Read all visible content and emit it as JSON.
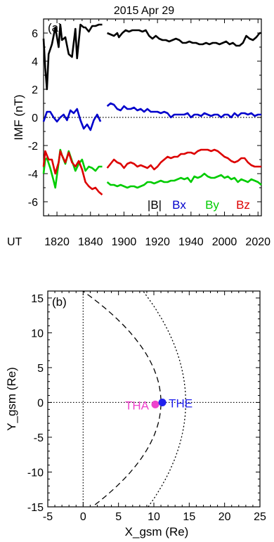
{
  "figure": {
    "title": "2015 Apr 29",
    "ut_label": "UT"
  },
  "chart_data": [
    {
      "type": "line",
      "panel_label": "(a)",
      "title": "2015 Apr 29",
      "xlabel": "",
      "ylabel": "IMF (nT)",
      "x_unit": "minutes since 18:00 UT",
      "xlim": [
        12,
        142
      ],
      "ylim": [
        -7,
        7
      ],
      "x_ticks": [
        20,
        40,
        60,
        80,
        100,
        120,
        140
      ],
      "x_tick_labels": [
        "1820",
        "1840",
        "1900",
        "1920",
        "1940",
        "2000",
        "2020"
      ],
      "visible_x_tick_labels": [
        "1820",
        "1840",
        "1900",
        "1920",
        "1940"
      ],
      "y_ticks": [
        -6,
        -4,
        -2,
        0,
        2,
        4,
        6
      ],
      "y_tick_labels": [
        "-6",
        "-4",
        "-2",
        "0",
        "2",
        "4",
        "6"
      ],
      "reference_lines": [
        {
          "y": 0,
          "style": "dotted"
        }
      ],
      "legend": [
        "|B|",
        "Bx",
        "By",
        "Bz"
      ],
      "legend_placement": "bottom-right",
      "grid": false,
      "series": [
        {
          "name": "|B|",
          "color": "#000000",
          "segments": [
            {
              "x": [
                12,
                13,
                14,
                15,
                17,
                19,
                21,
                22,
                23,
                25,
                27,
                29,
                31,
                32,
                34,
                36,
                37,
                39,
                41,
                43,
                45,
                47
              ],
              "y": [
                5.6,
                3.5,
                2.0,
                4.5,
                5.2,
                6.4,
                5.0,
                6.6,
                5.5,
                5.7,
                4.5,
                4.3,
                6.3,
                4.2,
                6.6,
                6.4,
                6.4,
                6.1,
                6.5,
                6.5,
                6.6,
                6.6
              ]
            },
            {
              "x": [
                50,
                52,
                54,
                56,
                57,
                59,
                61,
                63,
                65,
                67,
                69,
                71,
                73,
                75,
                77,
                79,
                81,
                83,
                85,
                87,
                89,
                91,
                93,
                95,
                97,
                99,
                101,
                103,
                105,
                107,
                109,
                111,
                113,
                115,
                117,
                119,
                121,
                123,
                125,
                127,
                129,
                131,
                133,
                135,
                137,
                139,
                141,
                142
              ],
              "y": [
                6.0,
                5.9,
                5.8,
                6.0,
                5.7,
                6.0,
                6.2,
                6.1,
                6.2,
                6.2,
                6.2,
                6.1,
                6.2,
                5.8,
                5.6,
                5.8,
                5.6,
                5.5,
                5.5,
                5.4,
                5.5,
                5.6,
                5.5,
                5.3,
                5.3,
                5.4,
                5.3,
                5.3,
                5.2,
                5.2,
                5.3,
                5.2,
                5.3,
                5.3,
                5.2,
                5.3,
                5.4,
                5.2,
                5.3,
                5.1,
                5.1,
                5.3,
                5.8,
                5.6,
                5.5,
                5.7,
                6.0,
                6.0
              ]
            }
          ]
        },
        {
          "name": "Bx",
          "color": "#0000cc",
          "segments": [
            {
              "x": [
                12,
                14,
                16,
                18,
                20,
                22,
                24,
                26,
                28,
                30,
                32,
                34,
                36,
                38,
                40,
                42,
                44,
                46
              ],
              "y": [
                -0.3,
                0.4,
                0.4,
                0.0,
                -0.3,
                0.0,
                0.2,
                -0.2,
                0.5,
                0.3,
                0.6,
                -0.2,
                -0.8,
                -0.5,
                -0.9,
                -0.2,
                0.2,
                -0.3
              ]
            },
            {
              "x": [
                50,
                52,
                54,
                56,
                58,
                60,
                62,
                64,
                66,
                68,
                70,
                72,
                74,
                76,
                78,
                80,
                82,
                84,
                86,
                88,
                90,
                92,
                94,
                96,
                98,
                100,
                102,
                104,
                106,
                108,
                110,
                112,
                114,
                116,
                118,
                120,
                122,
                124,
                126,
                128,
                130,
                132,
                134,
                136,
                138,
                140,
                142
              ],
              "y": [
                0.8,
                1.0,
                0.9,
                0.6,
                0.5,
                0.8,
                0.6,
                0.6,
                0.7,
                0.5,
                0.6,
                0.4,
                0.6,
                0.4,
                0.4,
                0.4,
                0.3,
                0.4,
                0.3,
                0.0,
                0.2,
                0.2,
                0.2,
                0.2,
                0.3,
                0.0,
                0.2,
                0.2,
                0.1,
                0.3,
                0.2,
                0.1,
                0.2,
                0.2,
                0.0,
                0.2,
                0.2,
                0.0,
                0.3,
                0.1,
                0.3,
                0.3,
                0.2,
                0.3,
                0.1,
                0.2,
                0.2
              ]
            }
          ]
        },
        {
          "name": "By",
          "color": "#00cc00",
          "segments": [
            {
              "x": [
                12,
                13,
                14,
                16,
                18,
                19,
                21,
                22,
                23,
                25,
                27,
                29,
                31,
                33,
                35,
                37,
                39,
                41,
                43,
                45,
                47
              ],
              "y": [
                -4.0,
                -3.0,
                -2.9,
                -3.6,
                -4.5,
                -5.0,
                -3.2,
                -2.3,
                -2.7,
                -3.3,
                -2.4,
                -3.1,
                -3.8,
                -3.3,
                -3.0,
                -3.8,
                -3.5,
                -3.6,
                -3.8,
                -3.5,
                -3.5
              ]
            },
            {
              "x": [
                50,
                52,
                54,
                56,
                58,
                60,
                62,
                64,
                66,
                68,
                70,
                72,
                74,
                76,
                78,
                80,
                82,
                84,
                86,
                88,
                90,
                92,
                94,
                96,
                98,
                100,
                102,
                104,
                106,
                108,
                110,
                112,
                114,
                116,
                118,
                120,
                122,
                124,
                126,
                128,
                130,
                132,
                134,
                136,
                138,
                140,
                142
              ],
              "y": [
                -4.6,
                -4.8,
                -4.8,
                -4.9,
                -4.8,
                -4.9,
                -5.0,
                -4.9,
                -4.9,
                -5.0,
                -4.9,
                -4.8,
                -4.6,
                -4.6,
                -4.7,
                -4.6,
                -4.5,
                -4.6,
                -4.6,
                -4.5,
                -4.5,
                -4.4,
                -4.3,
                -4.4,
                -4.3,
                -4.6,
                -4.2,
                -4.3,
                -4.2,
                -4.0,
                -4.2,
                -4.3,
                -4.3,
                -4.2,
                -4.1,
                -4.3,
                -4.2,
                -4.4,
                -4.3,
                -4.6,
                -4.4,
                -4.5,
                -4.6,
                -4.4,
                -4.5,
                -4.6,
                -4.8
              ]
            }
          ]
        },
        {
          "name": "Bz",
          "color": "#dd0000",
          "segments": [
            {
              "x": [
                12,
                13,
                14,
                15,
                17,
                19,
                21,
                22,
                23,
                25,
                27,
                29,
                31,
                33,
                35,
                37,
                39,
                41,
                43,
                45,
                47
              ],
              "y": [
                -3.5,
                -2.4,
                -2.7,
                -3.0,
                -3.0,
                -4.0,
                -3.2,
                -2.4,
                -2.7,
                -3.2,
                -2.5,
                -3.2,
                -3.5,
                -3.1,
                -3.7,
                -4.6,
                -4.9,
                -5.1,
                -5.0,
                -5.3,
                -5.5
              ]
            },
            {
              "x": [
                50,
                52,
                54,
                56,
                58,
                60,
                62,
                64,
                66,
                68,
                70,
                72,
                74,
                76,
                78,
                80,
                82,
                84,
                86,
                88,
                90,
                92,
                94,
                96,
                98,
                100,
                102,
                104,
                106,
                108,
                110,
                112,
                114,
                116,
                118,
                120,
                122,
                124,
                126,
                128,
                130,
                132,
                134,
                136,
                138,
                140,
                142
              ],
              "y": [
                -3.6,
                -3.3,
                -3.0,
                -3.2,
                -3.3,
                -3.6,
                -3.3,
                -3.2,
                -3.3,
                -3.5,
                -3.4,
                -3.5,
                -3.6,
                -3.4,
                -3.7,
                -3.5,
                -3.2,
                -3.0,
                -2.8,
                -2.9,
                -2.8,
                -2.8,
                -2.6,
                -2.6,
                -2.5,
                -2.5,
                -2.6,
                -2.4,
                -2.3,
                -2.3,
                -2.3,
                -2.4,
                -2.3,
                -2.4,
                -2.6,
                -2.8,
                -2.9,
                -3.1,
                -3.2,
                -3.1,
                -2.9,
                -2.9,
                -3.2,
                -3.4,
                -3.5,
                -3.5,
                -3.5
              ]
            }
          ]
        }
      ]
    },
    {
      "type": "scatter",
      "panel_label": "(b)",
      "title": "",
      "xlabel": "X_gsm (Re)",
      "ylabel": "Y_gsm (Re)",
      "xlim": [
        -5,
        25
      ],
      "ylim": [
        -15,
        16
      ],
      "x_ticks": [
        -5,
        0,
        5,
        10,
        15,
        20,
        25
      ],
      "x_tick_labels": [
        "-5",
        "0",
        "5",
        "10",
        "15",
        "20",
        "25"
      ],
      "y_ticks": [
        -15,
        -10,
        -5,
        0,
        5,
        10,
        15
      ],
      "y_tick_labels": [
        "-15",
        "-10",
        "-5",
        "0",
        "5",
        "10",
        "15"
      ],
      "reference_lines": [
        {
          "x": 0,
          "style": "dotted"
        },
        {
          "y": 0,
          "style": "dotted"
        }
      ],
      "grid": false,
      "boundaries": [
        {
          "kind": "magnetopause",
          "style": "dashed",
          "subsolar_x": 11.0,
          "x_at_y15": 1.3
        },
        {
          "kind": "bow-shock",
          "style": "dotted",
          "subsolar_x": 14.5,
          "x_at_y15": 9.2
        }
      ],
      "points": [
        {
          "name": "THA",
          "x": 10.2,
          "y": -0.3,
          "color": "#ee44cc",
          "label_side": "left"
        },
        {
          "name": "THE",
          "x": 11.2,
          "y": 0.0,
          "color": "#2222ee",
          "label_side": "right"
        }
      ]
    }
  ]
}
